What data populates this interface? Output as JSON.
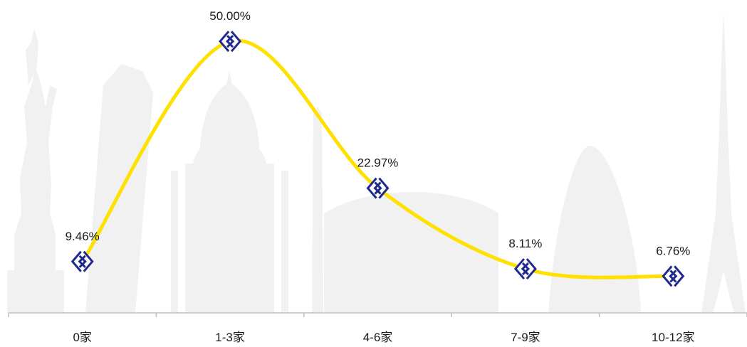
{
  "chart_data": {
    "type": "line",
    "categories": [
      "0家",
      "1-3家",
      "4-6家",
      "7-9家",
      "10-12家"
    ],
    "values": [
      9.46,
      50.0,
      22.97,
      8.11,
      6.76
    ],
    "data_labels": [
      "9.46%",
      "50.00%",
      "22.97%",
      "8.11%",
      "6.76%"
    ],
    "ylim": [
      0,
      55
    ],
    "smooth": true,
    "grid": false,
    "legend": "none",
    "colors": {
      "line": "#FFE100",
      "marker": "#1F2A8C",
      "axis": "#BFBFBF"
    }
  }
}
